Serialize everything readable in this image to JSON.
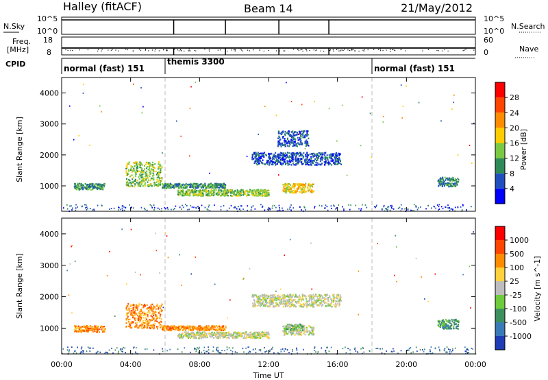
{
  "header": {
    "station": "Halley (fitACF)",
    "beam": "Beam 14",
    "date": "21/May/2012"
  },
  "top_panels": {
    "nsky_label": "N.Sky",
    "nsky_ticks": [
      "10^5",
      "10^0"
    ],
    "nsearch_label": "N.Search",
    "nsearch_ticks": [
      "10^5",
      "10^0"
    ],
    "freq_label_1": "Freq.",
    "freq_label_2": "[MHz]",
    "freq_ticks": [
      "18",
      "8"
    ],
    "nave_label": "Nave",
    "nave_ticks": [
      "60",
      "0"
    ],
    "cpid_label": "CPID"
  },
  "cpid_segments": [
    {
      "label": "normal (fast) 151",
      "start_hour": 0
    },
    {
      "label": "themis 3300",
      "start_hour": 6
    },
    {
      "label": "normal (fast) 151",
      "start_hour": 18
    }
  ],
  "x_axis": {
    "label": "Time UT",
    "ticks": [
      "00:00",
      "04:00",
      "08:00",
      "12:00",
      "16:00",
      "20:00",
      "00:00"
    ],
    "range_hours": [
      0,
      24
    ]
  },
  "power_panel": {
    "ylabel": "Slant Range [km]",
    "yticks": [
      "4000",
      "3000",
      "2000",
      "1000"
    ],
    "colorbar_label": "Power [dB]",
    "colorbar_ticks": [
      "28",
      "24",
      "20",
      "16",
      "12",
      "8",
      "4"
    ],
    "colors": [
      "#0000ff",
      "#2050c0",
      "#2e8b57",
      "#7ac943",
      "#ffcc00",
      "#ff8c00",
      "#ff4500",
      "#ff0000"
    ]
  },
  "velocity_panel": {
    "ylabel": "Slant Range [km]",
    "yticks": [
      "4000",
      "3000",
      "2000",
      "1000"
    ],
    "colorbar_label": "Velocity [m s^-1]",
    "colorbar_ticks": [
      "1000",
      "500",
      "100",
      "25",
      "-25",
      "-100",
      "-500",
      "-1000"
    ],
    "colors": [
      "#1e3cb4",
      "#3a7ab8",
      "#3e8f5e",
      "#6ecb3c",
      "#bdbdbd",
      "#ffd23c",
      "#ff8c00",
      "#ff4500",
      "#ff0000"
    ]
  },
  "chart_data": [
    {
      "type": "heatmap",
      "title": "Power",
      "xlabel": "Time UT",
      "ylabel": "Slant Range [km]",
      "xlim": [
        0,
        24
      ],
      "ylim": [
        180,
        4500
      ],
      "colorbar": {
        "label": "Power [dB]",
        "range": [
          0,
          32
        ]
      },
      "scatter_regions": [
        {
          "t": [
            0.7,
            2.5
          ],
          "range": [
            900,
            1100
          ],
          "level": 2
        },
        {
          "t": [
            3.7,
            5.8
          ],
          "range": [
            1000,
            1800
          ],
          "level": 3
        },
        {
          "t": [
            5.8,
            9.5
          ],
          "range": [
            950,
            1100
          ],
          "level": 2
        },
        {
          "t": [
            6.7,
            12.0
          ],
          "range": [
            700,
            900
          ],
          "level": 3
        },
        {
          "t": [
            12.8,
            14.6
          ],
          "range": [
            800,
            1100
          ],
          "level": 4
        },
        {
          "t": [
            11.0,
            16.2
          ],
          "range": [
            1700,
            2100
          ],
          "level": 1
        },
        {
          "t": [
            12.5,
            14.3
          ],
          "range": [
            2300,
            2800
          ],
          "level": 1
        },
        {
          "t": [
            21.8,
            23.0
          ],
          "range": [
            1000,
            1300
          ],
          "level": 2
        }
      ]
    },
    {
      "type": "heatmap",
      "title": "Velocity",
      "xlabel": "Time UT",
      "ylabel": "Slant Range [km]",
      "xlim": [
        0,
        24
      ],
      "ylim": [
        180,
        4500
      ],
      "colorbar": {
        "label": "Velocity [m s^-1]",
        "range": [
          -1000,
          1000
        ]
      },
      "scatter_regions": [
        {
          "t": [
            0.7,
            2.5
          ],
          "range": [
            900,
            1100
          ],
          "level": 6
        },
        {
          "t": [
            3.7,
            5.8
          ],
          "range": [
            1000,
            1800
          ],
          "level": 6
        },
        {
          "t": [
            5.8,
            9.5
          ],
          "range": [
            950,
            1100
          ],
          "level": 6
        },
        {
          "t": [
            6.7,
            12.0
          ],
          "range": [
            700,
            900
          ],
          "level": 4
        },
        {
          "t": [
            12.8,
            14.6
          ],
          "range": [
            800,
            1100
          ],
          "level": 4
        },
        {
          "t": [
            13.0,
            14.0
          ],
          "range": [
            950,
            1150
          ],
          "level": 3
        },
        {
          "t": [
            11.0,
            16.2
          ],
          "range": [
            1700,
            2100
          ],
          "level": 4
        },
        {
          "t": [
            21.8,
            23.0
          ],
          "range": [
            1000,
            1300
          ],
          "level": 2
        }
      ]
    }
  ]
}
